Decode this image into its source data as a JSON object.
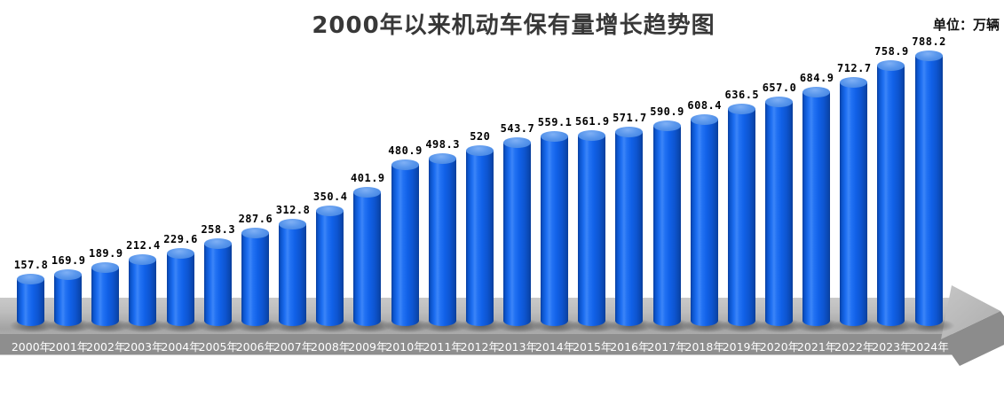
{
  "chart_data": {
    "type": "bar",
    "bar_style": "3d-cylinder",
    "title": "2000年以来机动车保有量增长趋势图",
    "unit_label": "单位：万辆",
    "categories": [
      "2000年",
      "2001年",
      "2002年",
      "2003年",
      "2004年",
      "2005年",
      "2006年",
      "2007年",
      "2008年",
      "2009年",
      "2010年",
      "2011年",
      "2012年",
      "2013年",
      "2014年",
      "2015年",
      "2016年",
      "2017年",
      "2018年",
      "2019年",
      "2020年",
      "2021年",
      "2022年",
      "2023年",
      "2024年"
    ],
    "values": [
      157.8,
      169.9,
      189.9,
      212.4,
      229.6,
      258.3,
      287.6,
      312.8,
      350.4,
      401.9,
      480.9,
      498.3,
      520,
      543.7,
      559.1,
      561.9,
      571.7,
      590.9,
      608.4,
      636.5,
      657.0,
      684.9,
      712.7,
      758.9,
      788.2
    ],
    "value_labels": [
      "157.8",
      "169.9",
      "189.9",
      "212.4",
      "229.6",
      "258.3",
      "287.6",
      "312.8",
      "350.4",
      "401.9",
      "480.9",
      "498.3",
      "520",
      "543.7",
      "559.1",
      "561.9",
      "571.7",
      "590.9",
      "608.4",
      "636.5",
      "657.0",
      "684.9",
      "712.7",
      "758.9",
      "788.2"
    ],
    "xlabel": "",
    "ylabel": "",
    "ylim": [
      0,
      800
    ],
    "grid": false,
    "legend": "none",
    "x_axis_style": "3d-gray-arrow-right",
    "colors": {
      "bar_body": "#1161e8",
      "bar_body_highlight": "#3c85f8",
      "bar_body_edge": "#0a3f9f",
      "bar_top_ellipse": "#5a97ec",
      "axis_top_face": "#bdbdbd",
      "axis_front_face": "#8e8e8e",
      "arrowhead_side": "#8c8c8c",
      "title_text": "#383838",
      "value_label_text": "#000000",
      "tick_label_text": "#ffffff",
      "background": "#ffffff"
    }
  }
}
